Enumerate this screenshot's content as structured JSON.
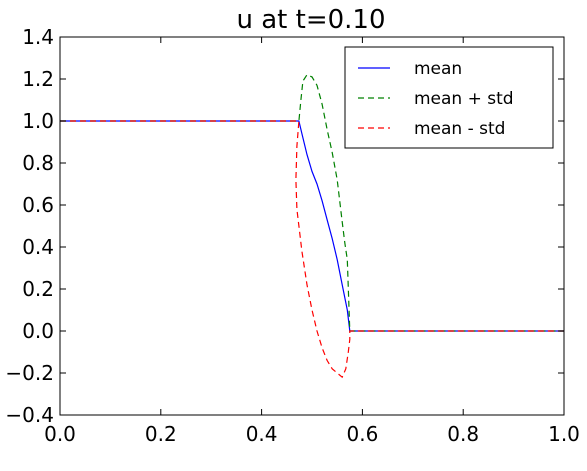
{
  "chart_data": {
    "type": "line",
    "title": "u at t=0.10",
    "xlabel": "",
    "ylabel": "",
    "xlim": [
      0.0,
      1.0
    ],
    "ylim": [
      -0.4,
      1.4
    ],
    "xticks": [
      "0.0",
      "0.2",
      "0.4",
      "0.6",
      "0.8",
      "1.0"
    ],
    "yticks": [
      "−0.4",
      "−0.2",
      "0.0",
      "0.2",
      "0.4",
      "0.6",
      "0.8",
      "1.0",
      "1.2",
      "1.4"
    ],
    "xtick_values": [
      0.0,
      0.2,
      0.4,
      0.6,
      0.8,
      1.0
    ],
    "ytick_values": [
      -0.4,
      -0.2,
      0.0,
      0.2,
      0.4,
      0.6,
      0.8,
      1.0,
      1.2,
      1.4
    ],
    "grid": false,
    "legend_position": "top-right",
    "series": [
      {
        "name": "mean",
        "color": "#0000ff",
        "dash": "solid",
        "x": [
          0.0,
          0.474,
          0.48,
          0.49,
          0.5,
          0.51,
          0.52,
          0.53,
          0.54,
          0.55,
          0.56,
          0.57,
          0.575,
          0.58,
          1.0
        ],
        "y": [
          1.0,
          1.0,
          0.94,
          0.84,
          0.76,
          0.7,
          0.62,
          0.53,
          0.44,
          0.34,
          0.22,
          0.1,
          0.0,
          0.0,
          0.0
        ]
      },
      {
        "name": "mean + std",
        "color": "#008000",
        "dash": "dashed",
        "x": [
          0.0,
          0.474,
          0.478,
          0.482,
          0.49,
          0.5,
          0.51,
          0.52,
          0.53,
          0.54,
          0.55,
          0.56,
          0.565,
          0.57,
          0.575,
          0.58,
          1.0
        ],
        "y": [
          1.0,
          1.0,
          1.1,
          1.19,
          1.22,
          1.21,
          1.17,
          1.08,
          0.96,
          0.85,
          0.72,
          0.52,
          0.42,
          0.34,
          0.0,
          0.0,
          0.0
        ]
      },
      {
        "name": "mean - std",
        "color": "#ff0000",
        "dash": "dashed",
        "x": [
          0.0,
          0.474,
          0.47,
          0.468,
          0.47,
          0.48,
          0.49,
          0.5,
          0.51,
          0.52,
          0.53,
          0.54,
          0.55,
          0.56,
          0.567,
          0.572,
          0.575,
          0.575,
          0.58,
          1.0
        ],
        "y": [
          1.0,
          1.0,
          0.88,
          0.72,
          0.58,
          0.38,
          0.22,
          0.1,
          0.0,
          -0.08,
          -0.14,
          -0.18,
          -0.2,
          -0.22,
          -0.18,
          -0.1,
          -0.04,
          0.0,
          0.0,
          0.0
        ]
      }
    ]
  }
}
